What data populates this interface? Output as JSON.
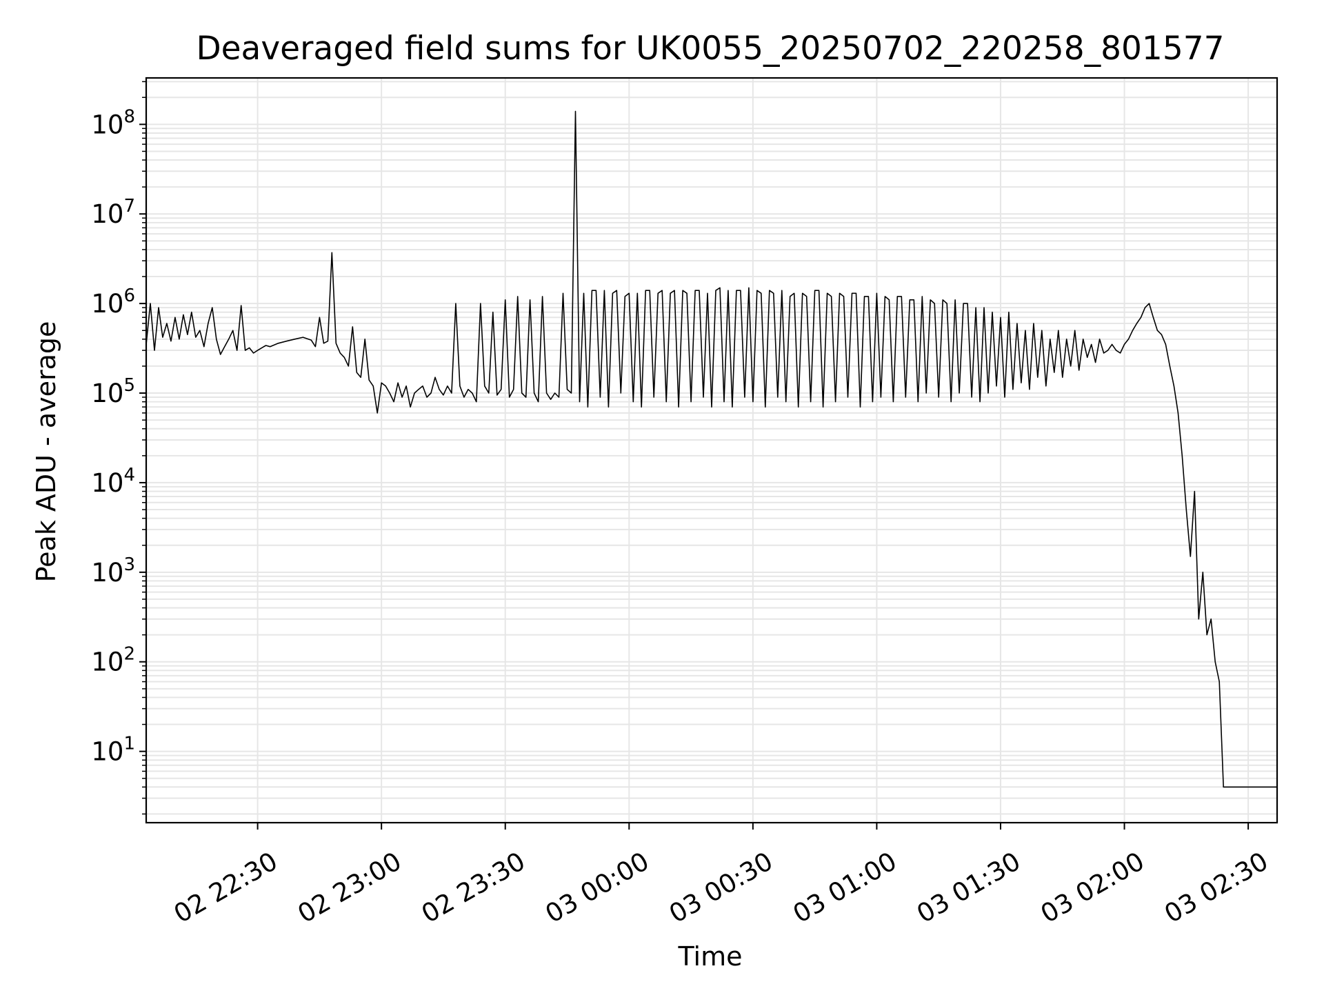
{
  "chart_data": {
    "type": "line",
    "title": "Deaveraged field sums for UK0055_20250702_220258_801577",
    "xlabel": "Time",
    "ylabel": "Peak ADU - average",
    "y_scale": "log",
    "ylim": [
      1.6,
      330000000
    ],
    "xlim": [
      "2025-07-02 22:03",
      "2025-07-03 02:37"
    ],
    "grid": true,
    "x_ticks": [
      {
        "value": "2025-07-02 22:30",
        "label": "02 22:30"
      },
      {
        "value": "2025-07-02 23:00",
        "label": "02 23:00"
      },
      {
        "value": "2025-07-02 23:30",
        "label": "02 23:30"
      },
      {
        "value": "2025-07-03 00:00",
        "label": "03 00:00"
      },
      {
        "value": "2025-07-03 00:30",
        "label": "03 00:30"
      },
      {
        "value": "2025-07-03 01:00",
        "label": "03 01:00"
      },
      {
        "value": "2025-07-03 01:30",
        "label": "03 01:30"
      },
      {
        "value": "2025-07-03 02:00",
        "label": "03 02:00"
      },
      {
        "value": "2025-07-03 02:30",
        "label": "03 02:30"
      }
    ],
    "y_ticks": [
      {
        "value": 10,
        "base": "10",
        "exp": "1"
      },
      {
        "value": 100,
        "base": "10",
        "exp": "2"
      },
      {
        "value": 1000,
        "base": "10",
        "exp": "3"
      },
      {
        "value": 10000,
        "base": "10",
        "exp": "4"
      },
      {
        "value": 100000,
        "base": "10",
        "exp": "5"
      },
      {
        "value": 1000000,
        "base": "10",
        "exp": "6"
      },
      {
        "value": 10000000,
        "base": "10",
        "exp": "7"
      },
      {
        "value": 100000000,
        "base": "10",
        "exp": "8"
      }
    ],
    "series": [
      {
        "color": "#000000",
        "x": [
          "2025-07-02 22:03",
          "2025-07-02 22:04",
          "2025-07-02 22:05",
          "2025-07-02 22:06",
          "2025-07-02 22:07",
          "2025-07-02 22:08",
          "2025-07-02 22:09",
          "2025-07-02 22:10",
          "2025-07-02 22:11",
          "2025-07-02 22:12",
          "2025-07-02 22:13",
          "2025-07-02 22:14",
          "2025-07-02 22:15",
          "2025-07-02 22:16",
          "2025-07-02 22:17",
          "2025-07-02 22:18",
          "2025-07-02 22:19",
          "2025-07-02 22:20",
          "2025-07-02 22:21",
          "2025-07-02 22:22",
          "2025-07-02 22:23",
          "2025-07-02 22:24",
          "2025-07-02 22:25",
          "2025-07-02 22:26",
          "2025-07-02 22:27",
          "2025-07-02 22:28",
          "2025-07-02 22:29",
          "2025-07-02 22:30",
          "2025-07-02 22:31",
          "2025-07-02 22:32",
          "2025-07-02 22:33",
          "2025-07-02 22:35",
          "2025-07-02 22:37",
          "2025-07-02 22:39",
          "2025-07-02 22:41",
          "2025-07-02 22:43",
          "2025-07-02 22:44",
          "2025-07-02 22:45",
          "2025-07-02 22:46",
          "2025-07-02 22:47",
          "2025-07-02 22:48",
          "2025-07-02 22:49",
          "2025-07-02 22:50",
          "2025-07-02 22:51",
          "2025-07-02 22:52",
          "2025-07-02 22:53",
          "2025-07-02 22:54",
          "2025-07-02 22:55",
          "2025-07-02 22:56",
          "2025-07-02 22:57",
          "2025-07-02 22:58",
          "2025-07-02 22:59",
          "2025-07-02 23:00",
          "2025-07-02 23:01",
          "2025-07-02 23:02",
          "2025-07-02 23:03",
          "2025-07-02 23:04",
          "2025-07-02 23:05",
          "2025-07-02 23:06",
          "2025-07-02 23:07",
          "2025-07-02 23:08",
          "2025-07-02 23:09",
          "2025-07-02 23:10",
          "2025-07-02 23:11",
          "2025-07-02 23:12",
          "2025-07-02 23:13",
          "2025-07-02 23:14",
          "2025-07-02 23:15",
          "2025-07-02 23:16",
          "2025-07-02 23:17",
          "2025-07-02 23:18",
          "2025-07-02 23:19",
          "2025-07-02 23:20",
          "2025-07-02 23:21",
          "2025-07-02 23:22",
          "2025-07-02 23:23",
          "2025-07-02 23:24",
          "2025-07-02 23:25",
          "2025-07-02 23:26",
          "2025-07-02 23:27",
          "2025-07-02 23:28",
          "2025-07-02 23:29",
          "2025-07-02 23:30",
          "2025-07-02 23:31",
          "2025-07-02 23:32",
          "2025-07-02 23:33",
          "2025-07-02 23:34",
          "2025-07-02 23:35",
          "2025-07-02 23:36",
          "2025-07-02 23:37",
          "2025-07-02 23:38",
          "2025-07-02 23:39",
          "2025-07-02 23:40",
          "2025-07-02 23:41",
          "2025-07-02 23:42",
          "2025-07-02 23:43",
          "2025-07-02 23:44",
          "2025-07-02 23:45",
          "2025-07-02 23:46",
          "2025-07-02 23:47",
          "2025-07-02 23:48",
          "2025-07-02 23:49",
          "2025-07-02 23:50",
          "2025-07-02 23:51",
          "2025-07-02 23:52",
          "2025-07-02 23:53",
          "2025-07-02 23:54",
          "2025-07-02 23:55",
          "2025-07-02 23:56",
          "2025-07-02 23:57",
          "2025-07-02 23:58",
          "2025-07-02 23:59",
          "2025-07-03 00:00",
          "2025-07-03 00:01",
          "2025-07-03 00:02",
          "2025-07-03 00:03",
          "2025-07-03 00:04",
          "2025-07-03 00:05",
          "2025-07-03 00:06",
          "2025-07-03 00:07",
          "2025-07-03 00:08",
          "2025-07-03 00:09",
          "2025-07-03 00:10",
          "2025-07-03 00:11",
          "2025-07-03 00:12",
          "2025-07-03 00:13",
          "2025-07-03 00:14",
          "2025-07-03 00:15",
          "2025-07-03 00:16",
          "2025-07-03 00:17",
          "2025-07-03 00:18",
          "2025-07-03 00:19",
          "2025-07-03 00:20",
          "2025-07-03 00:21",
          "2025-07-03 00:22",
          "2025-07-03 00:23",
          "2025-07-03 00:24",
          "2025-07-03 00:25",
          "2025-07-03 00:26",
          "2025-07-03 00:27",
          "2025-07-03 00:28",
          "2025-07-03 00:29",
          "2025-07-03 00:30",
          "2025-07-03 00:31",
          "2025-07-03 00:32",
          "2025-07-03 00:33",
          "2025-07-03 00:34",
          "2025-07-03 00:35",
          "2025-07-03 00:36",
          "2025-07-03 00:37",
          "2025-07-03 00:38",
          "2025-07-03 00:39",
          "2025-07-03 00:40",
          "2025-07-03 00:41",
          "2025-07-03 00:42",
          "2025-07-03 00:43",
          "2025-07-03 00:44",
          "2025-07-03 00:45",
          "2025-07-03 00:46",
          "2025-07-03 00:47",
          "2025-07-03 00:48",
          "2025-07-03 00:49",
          "2025-07-03 00:50",
          "2025-07-03 00:51",
          "2025-07-03 00:52",
          "2025-07-03 00:53",
          "2025-07-03 00:54",
          "2025-07-03 00:55",
          "2025-07-03 00:56",
          "2025-07-03 00:57",
          "2025-07-03 00:58",
          "2025-07-03 00:59",
          "2025-07-03 01:00",
          "2025-07-03 01:01",
          "2025-07-03 01:02",
          "2025-07-03 01:03",
          "2025-07-03 01:04",
          "2025-07-03 01:05",
          "2025-07-03 01:06",
          "2025-07-03 01:07",
          "2025-07-03 01:08",
          "2025-07-03 01:09",
          "2025-07-03 01:10",
          "2025-07-03 01:11",
          "2025-07-03 01:12",
          "2025-07-03 01:13",
          "2025-07-03 01:14",
          "2025-07-03 01:15",
          "2025-07-03 01:16",
          "2025-07-03 01:17",
          "2025-07-03 01:18",
          "2025-07-03 01:19",
          "2025-07-03 01:20",
          "2025-07-03 01:21",
          "2025-07-03 01:22",
          "2025-07-03 01:23",
          "2025-07-03 01:24",
          "2025-07-03 01:25",
          "2025-07-03 01:26",
          "2025-07-03 01:27",
          "2025-07-03 01:28",
          "2025-07-03 01:29",
          "2025-07-03 01:30",
          "2025-07-03 01:31",
          "2025-07-03 01:32",
          "2025-07-03 01:33",
          "2025-07-03 01:34",
          "2025-07-03 01:35",
          "2025-07-03 01:36",
          "2025-07-03 01:37",
          "2025-07-03 01:38",
          "2025-07-03 01:39",
          "2025-07-03 01:40",
          "2025-07-03 01:41",
          "2025-07-03 01:42",
          "2025-07-03 01:43",
          "2025-07-03 01:44",
          "2025-07-03 01:45",
          "2025-07-03 01:46",
          "2025-07-03 01:47",
          "2025-07-03 01:48",
          "2025-07-03 01:49",
          "2025-07-03 01:50",
          "2025-07-03 01:51",
          "2025-07-03 01:52",
          "2025-07-03 01:53",
          "2025-07-03 01:54",
          "2025-07-03 01:55",
          "2025-07-03 01:56",
          "2025-07-03 01:57",
          "2025-07-03 01:58",
          "2025-07-03 01:59",
          "2025-07-03 02:00",
          "2025-07-03 02:01",
          "2025-07-03 02:02",
          "2025-07-03 02:03",
          "2025-07-03 02:04",
          "2025-07-03 02:05",
          "2025-07-03 02:06",
          "2025-07-03 02:07",
          "2025-07-03 02:08",
          "2025-07-03 02:09",
          "2025-07-03 02:10",
          "2025-07-03 02:11",
          "2025-07-03 02:12",
          "2025-07-03 02:13",
          "2025-07-03 02:14",
          "2025-07-03 02:15",
          "2025-07-03 02:16",
          "2025-07-03 02:17",
          "2025-07-03 02:18",
          "2025-07-03 02:19",
          "2025-07-03 02:20",
          "2025-07-03 02:21",
          "2025-07-03 02:22",
          "2025-07-03 02:23",
          "2025-07-03 02:24",
          "2025-07-03 02:25",
          "2025-07-03 02:26",
          "2025-07-03 02:27",
          "2025-07-03 02:28",
          "2025-07-03 02:29",
          "2025-07-03 02:30",
          "2025-07-03 02:31",
          "2025-07-03 02:32",
          "2025-07-03 02:33",
          "2025-07-03 02:34",
          "2025-07-03 02:35",
          "2025-07-03 02:36",
          "2025-07-03 02:37"
        ],
        "y": [
          350000,
          1000000,
          300000,
          900000,
          420000,
          600000,
          380000,
          700000,
          400000,
          750000,
          450000,
          800000,
          420000,
          500000,
          330000,
          600000,
          900000,
          400000,
          270000,
          330000,
          400000,
          500000,
          300000,
          950000,
          300000,
          320000,
          280000,
          300000,
          320000,
          340000,
          330000,
          360000,
          380000,
          400000,
          420000,
          390000,
          330000,
          700000,
          360000,
          380000,
          3700000,
          360000,
          280000,
          250000,
          200000,
          550000,
          170000,
          150000,
          400000,
          140000,
          120000,
          60000,
          130000,
          120000,
          100000,
          80000,
          130000,
          90000,
          120000,
          70000,
          100000,
          110000,
          120000,
          90000,
          100000,
          150000,
          110000,
          95000,
          120000,
          100000,
          1000000,
          120000,
          90000,
          110000,
          100000,
          80000,
          1000000,
          120000,
          100000,
          800000,
          95000,
          110000,
          1100000,
          90000,
          110000,
          1200000,
          100000,
          90000,
          1100000,
          100000,
          80000,
          1200000,
          100000,
          85000,
          100000,
          90000,
          1300000,
          110000,
          100000,
          140000000,
          80000,
          1300000,
          70000,
          1400000,
          1400000,
          90000,
          1400000,
          70000,
          1300000,
          1400000,
          100000,
          1200000,
          1300000,
          80000,
          1300000,
          70000,
          1400000,
          1400000,
          90000,
          1300000,
          1400000,
          80000,
          1300000,
          1400000,
          70000,
          1400000,
          1300000,
          80000,
          1400000,
          1400000,
          90000,
          1300000,
          70000,
          1400000,
          1500000,
          80000,
          1400000,
          70000,
          1400000,
          1400000,
          90000,
          1500000,
          80000,
          1400000,
          1300000,
          70000,
          1400000,
          1300000,
          90000,
          1400000,
          80000,
          1200000,
          1300000,
          70000,
          1300000,
          1200000,
          80000,
          1400000,
          1400000,
          70000,
          1300000,
          1200000,
          80000,
          1300000,
          1200000,
          90000,
          1300000,
          1300000,
          70000,
          1200000,
          1200000,
          80000,
          1300000,
          90000,
          1200000,
          1100000,
          80000,
          1200000,
          1200000,
          90000,
          1100000,
          1100000,
          80000,
          1200000,
          100000,
          1100000,
          1000000,
          90000,
          1100000,
          1000000,
          80000,
          1100000,
          100000,
          1000000,
          1000000,
          90000,
          900000,
          80000,
          900000,
          100000,
          800000,
          120000,
          700000,
          90000,
          800000,
          110000,
          600000,
          130000,
          500000,
          110000,
          600000,
          150000,
          500000,
          120000,
          400000,
          170000,
          500000,
          150000,
          400000,
          200000,
          500000,
          180000,
          400000,
          250000,
          350000,
          220000,
          400000,
          280000,
          300000,
          350000,
          300000,
          280000,
          350000,
          400000,
          500000,
          600000,
          700000,
          900000,
          1000000,
          700000,
          500000,
          450000,
          350000,
          200000,
          120000,
          60000,
          20000,
          5000,
          1500,
          8000,
          300,
          1000,
          200,
          300,
          100,
          60,
          4,
          4,
          4,
          4,
          4,
          4,
          4,
          4,
          4,
          4,
          4,
          4,
          4,
          4
        ]
      }
    ]
  }
}
